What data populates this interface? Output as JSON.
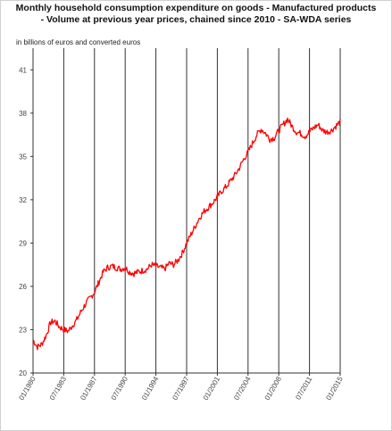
{
  "chart_data": {
    "type": "line",
    "title_lines": [
      "Monthly household consumption expenditure on goods - Manufactured products",
      "- Volume at previous year prices, chained since 2010 - SA-WDA series"
    ],
    "unit_label": "in billions of euros and converted euros",
    "xlabel": "",
    "ylabel": "",
    "x_ticks": [
      "01/1980",
      "07/1983",
      "01/1987",
      "07/1990",
      "01/1994",
      "07/1997",
      "01/2001",
      "07/2004",
      "01/2008",
      "07/2011",
      "01/2015"
    ],
    "y_ticks": [
      20,
      23,
      26,
      29,
      32,
      35,
      38,
      41
    ],
    "ylim": [
      20,
      42.5
    ],
    "xlim": [
      "1980-01",
      "2015-01"
    ],
    "grid": "vertical",
    "legend": "none",
    "series": [
      {
        "color": "#ff0000",
        "x": [
          "1980-01",
          "1980-07",
          "1981-01",
          "1981-07",
          "1982-01",
          "1982-07",
          "1983-01",
          "1983-07",
          "1984-01",
          "1984-07",
          "1985-01",
          "1985-07",
          "1986-01",
          "1986-07",
          "1987-01",
          "1987-07",
          "1988-01",
          "1988-07",
          "1989-01",
          "1989-07",
          "1990-01",
          "1990-07",
          "1991-01",
          "1991-07",
          "1992-01",
          "1992-07",
          "1993-01",
          "1993-07",
          "1994-01",
          "1994-07",
          "1995-01",
          "1995-07",
          "1996-01",
          "1996-07",
          "1997-01",
          "1997-07",
          "1998-01",
          "1998-07",
          "1999-01",
          "1999-07",
          "2000-01",
          "2000-07",
          "2001-01",
          "2001-07",
          "2002-01",
          "2002-07",
          "2003-01",
          "2003-07",
          "2004-01",
          "2004-07",
          "2005-01",
          "2005-07",
          "2006-01",
          "2006-07",
          "2007-01",
          "2007-07",
          "2008-01",
          "2008-07",
          "2009-01",
          "2009-07",
          "2010-01",
          "2010-07",
          "2011-01",
          "2011-07",
          "2012-01",
          "2012-07",
          "2013-01",
          "2013-07",
          "2014-01",
          "2014-07",
          "2015-01"
        ],
        "values": [
          22.3,
          21.8,
          22.0,
          22.6,
          23.5,
          23.6,
          23.2,
          23.0,
          22.9,
          23.3,
          23.7,
          24.3,
          24.8,
          25.2,
          25.6,
          26.3,
          27.0,
          27.3,
          27.4,
          27.3,
          27.2,
          27.3,
          27.0,
          26.9,
          27.0,
          27.1,
          27.2,
          27.5,
          27.4,
          27.3,
          27.2,
          27.6,
          27.5,
          27.8,
          28.3,
          29.0,
          29.6,
          30.2,
          30.8,
          31.2,
          31.5,
          31.8,
          32.2,
          32.6,
          32.9,
          33.3,
          33.7,
          34.2,
          34.8,
          35.3,
          35.9,
          36.5,
          36.9,
          36.6,
          36.2,
          36.3,
          36.8,
          37.2,
          37.6,
          37.1,
          36.7,
          36.6,
          36.4,
          36.7,
          37.0,
          37.2,
          36.8,
          36.7,
          36.8,
          37.1,
          37.4
        ]
      }
    ]
  }
}
